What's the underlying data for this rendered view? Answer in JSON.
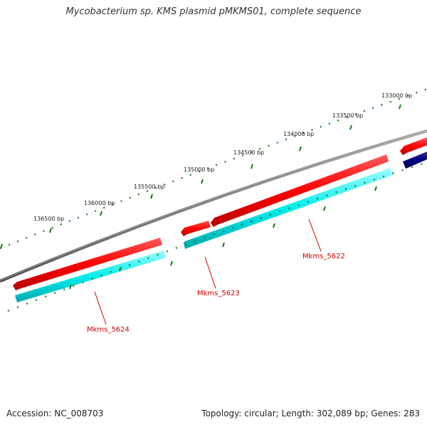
{
  "title": "Mycobacterium sp. KMS plasmid pMKMS01, complete sequence",
  "footer": {
    "accession": "Accession: NC_008703",
    "summary": "Topology: circular; Length: 302,089 bp; Genes: 283"
  },
  "scale": {
    "tick_color": "#1a7a1a",
    "labels": [
      "133000 bp",
      "133500 bp",
      "134000 bp",
      "134500 bp",
      "135000 bp",
      "135500 bp",
      "136000 bp",
      "136500 bp"
    ]
  },
  "genes": [
    {
      "name": "Mkms_5622",
      "color": "#ff0000"
    },
    {
      "name": "Mkms_5623",
      "color": "#ff0000"
    },
    {
      "name": "Mkms_5624",
      "color": "#ff0000"
    }
  ],
  "colors": {
    "backbone": "#808080",
    "forward_gene": "#ff0000",
    "cds": "#00e5ee",
    "other_gene": "#000080",
    "label": "#cc0000"
  }
}
